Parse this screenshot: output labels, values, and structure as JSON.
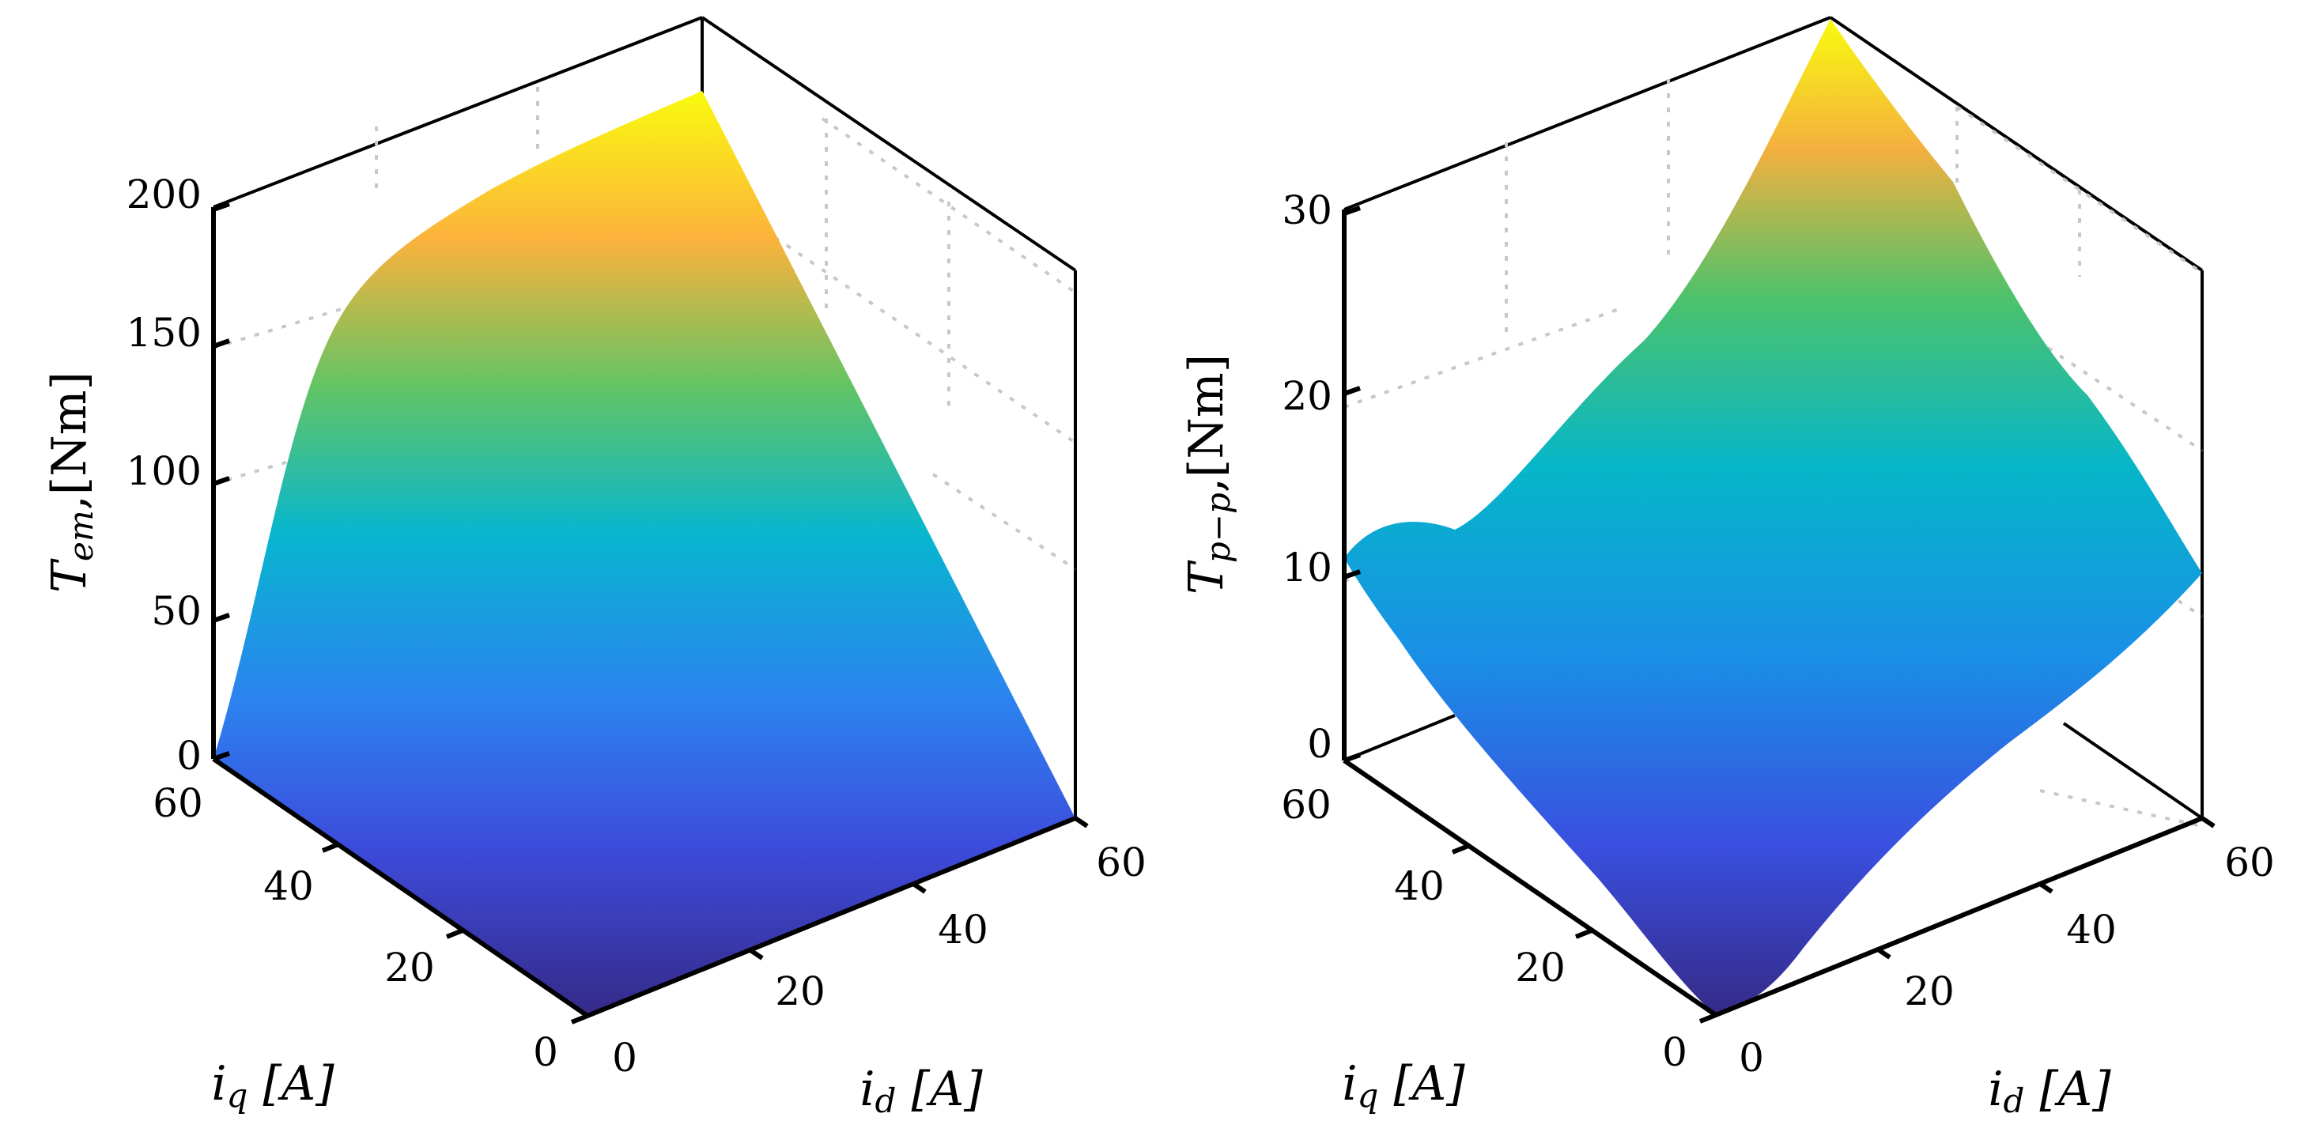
{
  "chart_data": [
    {
      "type": "surface",
      "xlabel": "i_d [A]",
      "ylabel": "i_q [A]",
      "zlabel": "T_em,[Nm]",
      "xlim": [
        0,
        60
      ],
      "ylim": [
        0,
        60
      ],
      "zlim": [
        0,
        200
      ],
      "xticks": [
        "0",
        "20",
        "40",
        "60"
      ],
      "yticks": [
        "0",
        "20",
        "40",
        "60"
      ],
      "zticks": [
        "0",
        "50",
        "100",
        "150",
        "200"
      ],
      "grid": true,
      "colormap": "parula",
      "x": [
        0,
        20,
        40,
        60
      ],
      "y": [
        0,
        20,
        40,
        60
      ],
      "z": [
        [
          0,
          0,
          0,
          0
        ],
        [
          0,
          55,
          90,
          110
        ],
        [
          0,
          80,
          135,
          165
        ],
        [
          0,
          95,
          155,
          180
        ]
      ]
    },
    {
      "type": "surface",
      "xlabel": "i_d [A]",
      "ylabel": "i_q [A]",
      "zlabel": "T_p-p,[Nm]",
      "xlim": [
        0,
        60
      ],
      "ylim": [
        0,
        60
      ],
      "zlim": [
        0,
        30
      ],
      "xticks": [
        "0",
        "20",
        "40",
        "60"
      ],
      "yticks": [
        "0",
        "20",
        "40",
        "60"
      ],
      "zticks": [
        "0",
        "10",
        "20",
        "30"
      ],
      "grid": true,
      "colormap": "parula",
      "x": [
        0,
        20,
        40,
        60
      ],
      "y": [
        0,
        20,
        40,
        60
      ],
      "z": [
        [
          0,
          2,
          6,
          10
        ],
        [
          3,
          8,
          12,
          17
        ],
        [
          7,
          14,
          19,
          24
        ],
        [
          11,
          17,
          24,
          31
        ]
      ]
    }
  ],
  "labels": {
    "left": {
      "zlabel_main": "T",
      "zlabel_sub": "em",
      "zlabel_unit": ",[Nm]",
      "xlabel_main": "i",
      "xlabel_sub": "d",
      "xlabel_unit": " [A]",
      "ylabel_main": "i",
      "ylabel_sub": "q",
      "ylabel_unit": " [A]"
    },
    "right": {
      "zlabel_main": "T",
      "zlabel_sub": "p−p",
      "zlabel_unit": ",[Nm]",
      "xlabel_main": "i",
      "xlabel_sub": "d",
      "xlabel_unit": " [A]",
      "ylabel_main": "i",
      "ylabel_sub": "q",
      "ylabel_unit": " [A]"
    }
  }
}
